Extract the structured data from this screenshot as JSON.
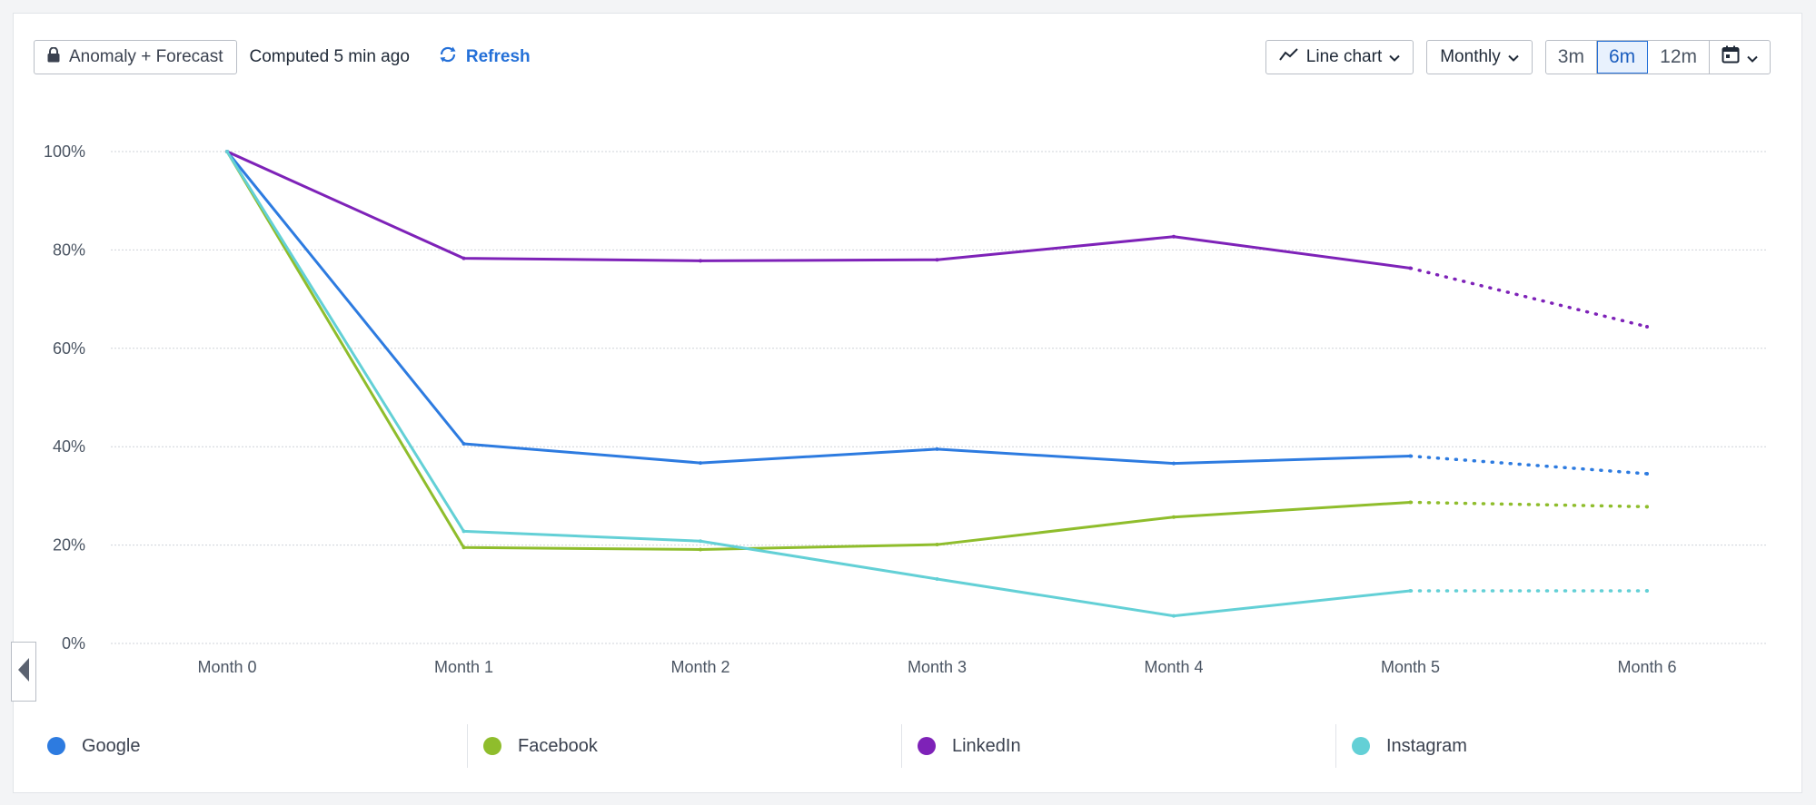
{
  "toolbar": {
    "badge_label": "Anomaly + Forecast",
    "computed_text": "Computed 5 min ago",
    "refresh_label": "Refresh",
    "chart_type_label": "Line chart",
    "interval_label": "Monthly",
    "ranges": [
      "3m",
      "6m",
      "12m"
    ],
    "active_range": "6m"
  },
  "chart_data": {
    "type": "line",
    "categories": [
      "Month 0",
      "Month 1",
      "Month 2",
      "Month 3",
      "Month 4",
      "Month 5",
      "Month 6"
    ],
    "yticks": [
      "0%",
      "20%",
      "40%",
      "60%",
      "80%",
      "100%"
    ],
    "ylim": [
      0,
      100
    ],
    "forecast_from_index": 5,
    "series": [
      {
        "name": "Google",
        "color": "#2d7be0",
        "values": [
          100,
          40.6,
          36.7,
          39.5,
          36.6,
          38.1,
          34.5
        ]
      },
      {
        "name": "Facebook",
        "color": "#8fbd2c",
        "values": [
          100,
          19.5,
          19.1,
          20.1,
          25.7,
          28.7,
          27.8
        ]
      },
      {
        "name": "LinkedIn",
        "color": "#7e22b8",
        "values": [
          100,
          78.3,
          77.8,
          78.0,
          82.7,
          76.3,
          64.4
        ]
      },
      {
        "name": "Instagram",
        "color": "#63d0d6",
        "values": [
          100,
          22.8,
          20.8,
          13.1,
          5.6,
          10.7,
          10.7
        ]
      }
    ]
  }
}
